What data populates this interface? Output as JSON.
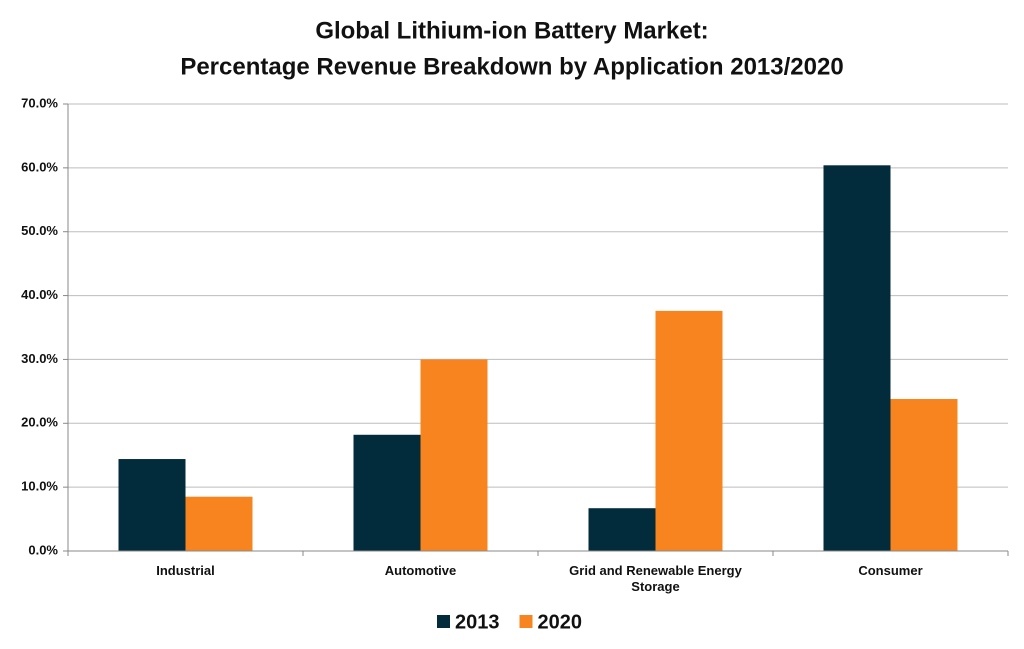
{
  "chart_data": {
    "type": "bar",
    "title": [
      "Global Lithium-ion Battery Market:",
      "Percentage Revenue Breakdown by Application 2013/2020"
    ],
    "categories": [
      "Industrial",
      "Automotive",
      "Grid and Renewable Energy Storage",
      "Consumer"
    ],
    "series": [
      {
        "name": "2013",
        "color": "#022b3c",
        "values": [
          14.4,
          18.2,
          6.7,
          60.4
        ]
      },
      {
        "name": "2020",
        "color": "#f7841f",
        "values": [
          8.5,
          30.0,
          37.6,
          23.8
        ]
      }
    ],
    "ylim": [
      0,
      70
    ],
    "yticks": [
      {
        "value": 0,
        "label": "0.0%"
      },
      {
        "value": 10,
        "label": "10.0%"
      },
      {
        "value": 20,
        "label": "20.0%"
      },
      {
        "value": 30,
        "label": "30.0%"
      },
      {
        "value": 40,
        "label": "40.0%"
      },
      {
        "value": 50,
        "label": "50.0%"
      },
      {
        "value": 60,
        "label": "60.0%"
      },
      {
        "value": 70,
        "label": "70.0%"
      }
    ],
    "grid": true
  }
}
